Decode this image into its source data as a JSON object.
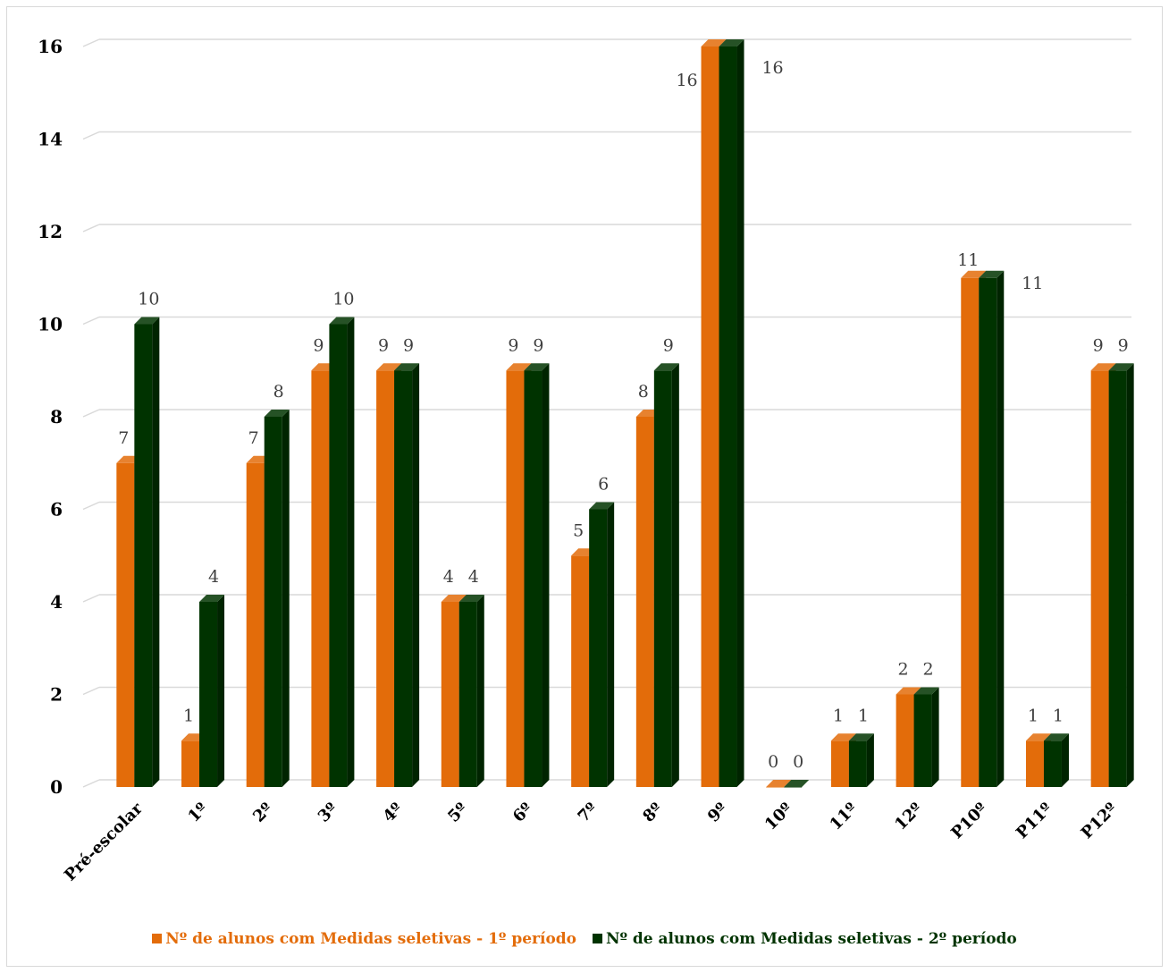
{
  "chart_data": {
    "type": "bar",
    "title": "",
    "xlabel": "",
    "ylabel": "",
    "ylim": [
      0,
      16
    ],
    "yticks": [
      0,
      2,
      4,
      6,
      8,
      10,
      12,
      14,
      16
    ],
    "grid": true,
    "legend_position": "bottom",
    "categories": [
      "Pré-escolar",
      "1º",
      "2º",
      "3º",
      "4º",
      "5º",
      "6º",
      "7º",
      "8º",
      "9º",
      "10º",
      "11º",
      "12º",
      "P10º",
      "P11º",
      "P12º"
    ],
    "series": [
      {
        "name": "Nº de alunos com Medidas seletivas - 1º período",
        "color": "#e36c0a",
        "values": [
          7,
          1,
          7,
          9,
          9,
          4,
          9,
          5,
          8,
          16,
          0,
          1,
          2,
          11,
          1,
          9
        ]
      },
      {
        "name": "Nº de alunos com Medidas seletivas - 2º período",
        "color": "#003300",
        "values": [
          10,
          4,
          8,
          10,
          9,
          4,
          9,
          6,
          9,
          16,
          0,
          1,
          2,
          11,
          1,
          9
        ]
      }
    ]
  }
}
